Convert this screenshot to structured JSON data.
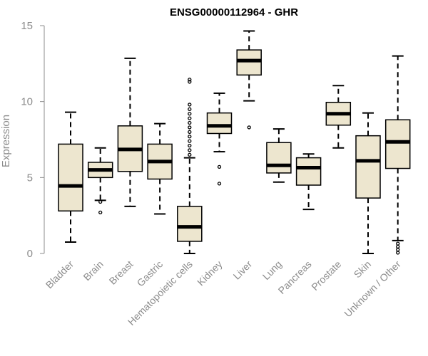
{
  "chart_data": {
    "type": "boxplot",
    "title": "ENSG00000112964 - GHR",
    "xlabel": "",
    "ylabel": "Expression",
    "ylim": [
      0,
      15
    ],
    "yticks": [
      0,
      5,
      10,
      15
    ],
    "box_fill": "#ede6cf",
    "categories": [
      "Bladder",
      "Brain",
      "Breast",
      "Gastric",
      "Hematopoietic cells",
      "Kidney",
      "Liver",
      "Lung",
      "Pancreas",
      "Prostate",
      "Skin",
      "Unknown / Other"
    ],
    "boxes": [
      {
        "whisker_low": 0.75,
        "q1": 2.8,
        "median": 4.45,
        "q3": 7.2,
        "whisker_high": 9.3,
        "outliers": []
      },
      {
        "whisker_low": 3.5,
        "q1": 5.0,
        "median": 5.5,
        "q3": 6.0,
        "whisker_high": 6.95,
        "outliers": [
          3.4,
          2.7
        ]
      },
      {
        "whisker_low": 3.1,
        "q1": 5.4,
        "median": 6.85,
        "q3": 8.4,
        "whisker_high": 12.85,
        "outliers": []
      },
      {
        "whisker_low": 2.6,
        "q1": 4.9,
        "median": 6.05,
        "q3": 7.2,
        "whisker_high": 8.55,
        "outliers": []
      },
      {
        "whisker_low": 0.0,
        "q1": 0.8,
        "median": 1.75,
        "q3": 3.1,
        "whisker_high": 6.3,
        "outliers": [
          6.5,
          6.8,
          7.1,
          7.4,
          7.7,
          8.0,
          8.3,
          8.6,
          8.9,
          9.2,
          9.5,
          9.8,
          11.3,
          11.45
        ]
      },
      {
        "whisker_low": 6.7,
        "q1": 7.9,
        "median": 8.4,
        "q3": 9.25,
        "whisker_high": 10.55,
        "outliers": [
          5.7,
          4.6
        ]
      },
      {
        "whisker_low": 10.05,
        "q1": 11.75,
        "median": 12.7,
        "q3": 13.4,
        "whisker_high": 14.65,
        "outliers": [
          8.3
        ]
      },
      {
        "whisker_low": 4.7,
        "q1": 5.3,
        "median": 5.8,
        "q3": 7.3,
        "whisker_high": 8.2,
        "outliers": []
      },
      {
        "whisker_low": 2.9,
        "q1": 4.5,
        "median": 5.65,
        "q3": 6.3,
        "whisker_high": 6.55,
        "outliers": []
      },
      {
        "whisker_low": 6.95,
        "q1": 8.45,
        "median": 9.2,
        "q3": 9.95,
        "whisker_high": 11.05,
        "outliers": []
      },
      {
        "whisker_low": 0.0,
        "q1": 3.65,
        "median": 6.1,
        "q3": 7.75,
        "whisker_high": 9.25,
        "outliers": []
      },
      {
        "whisker_low": 0.85,
        "q1": 5.6,
        "median": 7.35,
        "q3": 8.8,
        "whisker_high": 13.0,
        "outliers": [
          0.65,
          0.45,
          0.25,
          0.05
        ]
      }
    ]
  }
}
